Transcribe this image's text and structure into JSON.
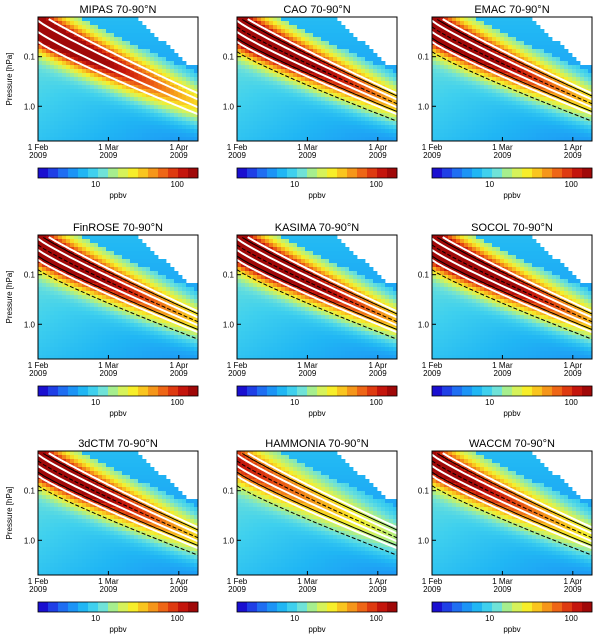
{
  "figure": {
    "colormap": [
      "#1a0fd0",
      "#1f3fe6",
      "#1f6ef2",
      "#1c94f6",
      "#20b6f4",
      "#3fd0ee",
      "#6fe2d8",
      "#a6ee8e",
      "#d6f25a",
      "#f7ee2a",
      "#f9c51f",
      "#f5961a",
      "#ee6616",
      "#de3a10",
      "#c4150c",
      "#a00808"
    ],
    "contour_white": "#ffffff",
    "contour_black": "#000000",
    "masked_color": "#ffffff"
  },
  "chart_data": [
    {
      "type": "heatmap",
      "title": "MIPAS   70-90°N",
      "ylabel": "Pressure [hPa]",
      "yscale": "log",
      "yticks": [
        "0.1",
        "1.0"
      ],
      "xticks": [
        "1 Feb\n2009",
        "1 Mar\n2009",
        "1 Apr\n2009"
      ],
      "colorbar": {
        "label": "ppbv",
        "ticks": [
          "10",
          "100"
        ]
      },
      "descent_peak": "high",
      "model": false
    },
    {
      "type": "heatmap",
      "title": "CAO   70-90°N",
      "ylabel": "",
      "yscale": "log",
      "yticks": [
        "0.1",
        "1.0"
      ],
      "xticks": [
        "1 Feb\n2009",
        "1 Mar\n2009",
        "1 Apr\n2009"
      ],
      "colorbar": {
        "label": "ppbv",
        "ticks": [
          "10",
          "100"
        ]
      },
      "descent_peak": "very-high",
      "model": true
    },
    {
      "type": "heatmap",
      "title": "EMAC   70-90°N",
      "ylabel": "",
      "yscale": "log",
      "yticks": [
        "0.1",
        "1.0"
      ],
      "xticks": [
        "1 Feb\n2009",
        "1 Mar\n2009",
        "1 Apr\n2009"
      ],
      "colorbar": {
        "label": "ppbv",
        "ticks": [
          "10",
          "100"
        ]
      },
      "descent_peak": "high",
      "model": true
    },
    {
      "type": "heatmap",
      "title": "FinROSE   70-90°N",
      "ylabel": "Pressure [hPa]",
      "yscale": "log",
      "yticks": [
        "0.1",
        "1.0"
      ],
      "xticks": [
        "1 Feb\n2009",
        "1 Mar\n2009",
        "1 Apr\n2009"
      ],
      "colorbar": {
        "label": "ppbv",
        "ticks": [
          "10",
          "100"
        ]
      },
      "descent_peak": "high",
      "model": true
    },
    {
      "type": "heatmap",
      "title": "KASIMA   70-90°N",
      "ylabel": "",
      "yscale": "log",
      "yticks": [
        "0.1",
        "1.0"
      ],
      "xticks": [
        "1 Feb\n2009",
        "1 Mar\n2009",
        "1 Apr\n2009"
      ],
      "colorbar": {
        "label": "ppbv",
        "ticks": [
          "10",
          "100"
        ]
      },
      "descent_peak": "very-high",
      "model": true
    },
    {
      "type": "heatmap",
      "title": "SOCOL   70-90°N",
      "ylabel": "",
      "yscale": "log",
      "yticks": [
        "0.1",
        "1.0"
      ],
      "xticks": [
        "1 Feb\n2009",
        "1 Mar\n2009",
        "1 Apr\n2009"
      ],
      "colorbar": {
        "label": "ppbv",
        "ticks": [
          "10",
          "100"
        ]
      },
      "descent_peak": "very-high",
      "model": true
    },
    {
      "type": "heatmap",
      "title": "3dCTM   70-90°N",
      "ylabel": "Pressure [hPa]",
      "yscale": "log",
      "yticks": [
        "0.1",
        "1.0"
      ],
      "xticks": [
        "1 Feb\n2009",
        "1 Mar\n2009",
        "1 Apr\n2009"
      ],
      "colorbar": {
        "label": "ppbv",
        "ticks": [
          "10",
          "100"
        ]
      },
      "descent_peak": "high",
      "model": true
    },
    {
      "type": "heatmap",
      "title": "HAMMONIA   70-90°N",
      "ylabel": "",
      "yscale": "log",
      "yticks": [
        "0.1",
        "1.0"
      ],
      "xticks": [
        "1 Feb\n2009",
        "1 Mar\n2009",
        "1 Apr\n2009"
      ],
      "colorbar": {
        "label": "ppbv",
        "ticks": [
          "10",
          "100"
        ]
      },
      "descent_peak": "low",
      "model": true
    },
    {
      "type": "heatmap",
      "title": "WACCM   70-90°N",
      "ylabel": "",
      "yscale": "log",
      "yticks": [
        "0.1",
        "1.0"
      ],
      "xticks": [
        "1 Feb\n2009",
        "1 Mar\n2009",
        "1 Apr\n2009"
      ],
      "colorbar": {
        "label": "ppbv",
        "ticks": [
          "10",
          "100"
        ]
      },
      "descent_peak": "medium",
      "model": true
    }
  ]
}
